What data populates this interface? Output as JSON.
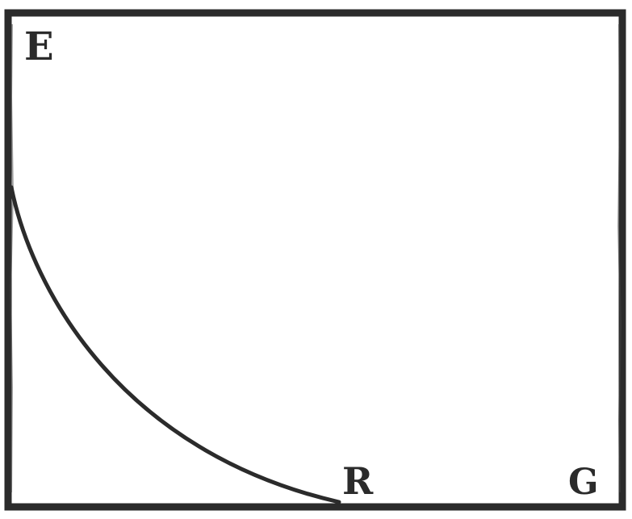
{
  "diagram": {
    "ink_color": "#2b2b2b",
    "paper_color": "#ffffff",
    "labels": {
      "corner_top_left": "E",
      "curve_end": "R",
      "corner_bottom_right": "G"
    }
  }
}
